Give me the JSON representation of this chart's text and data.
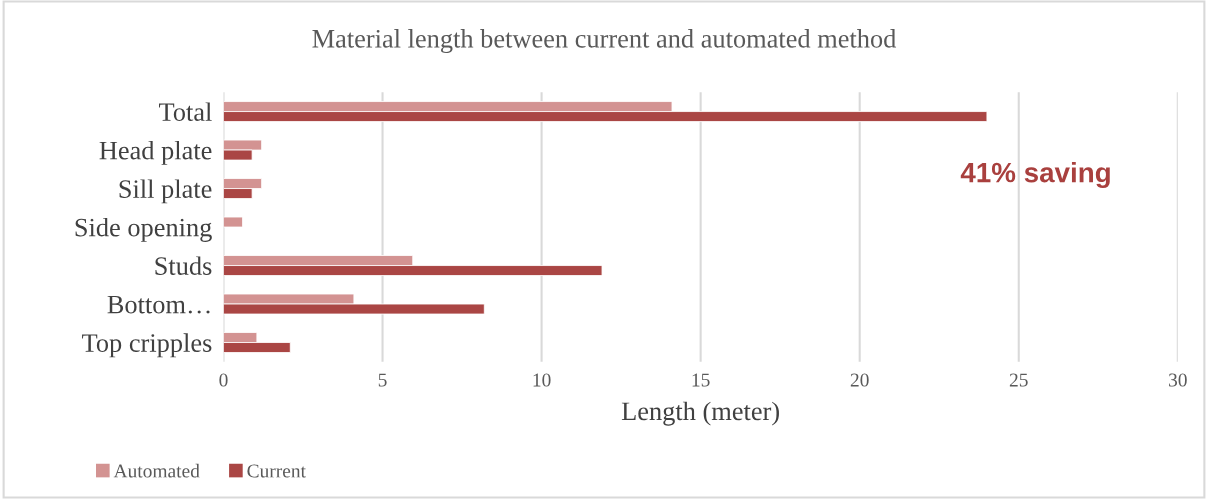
{
  "chart_data": {
    "type": "bar",
    "orientation": "horizontal",
    "title": "Material length between current and automated method",
    "xlabel": "Length (meter)",
    "categories": [
      "Total",
      "Head plate",
      "Sill plate",
      "Side opening",
      "Studs",
      "Bottom…",
      "Top cripples"
    ],
    "series": [
      {
        "name": "Automated",
        "color": "#d39392",
        "values": [
          14.1,
          1.2,
          1.2,
          0.6,
          5.95,
          4.1,
          1.05
        ]
      },
      {
        "name": "Current",
        "color": "#aa4644",
        "values": [
          24.0,
          0.9,
          0.9,
          null,
          11.9,
          8.2,
          2.1
        ]
      }
    ],
    "xlim": [
      0,
      30
    ],
    "xticks": [
      0,
      5,
      10,
      15,
      20,
      25,
      30
    ],
    "grid": "x",
    "legend": "bottom left",
    "annotations": [
      "41% saving"
    ]
  }
}
